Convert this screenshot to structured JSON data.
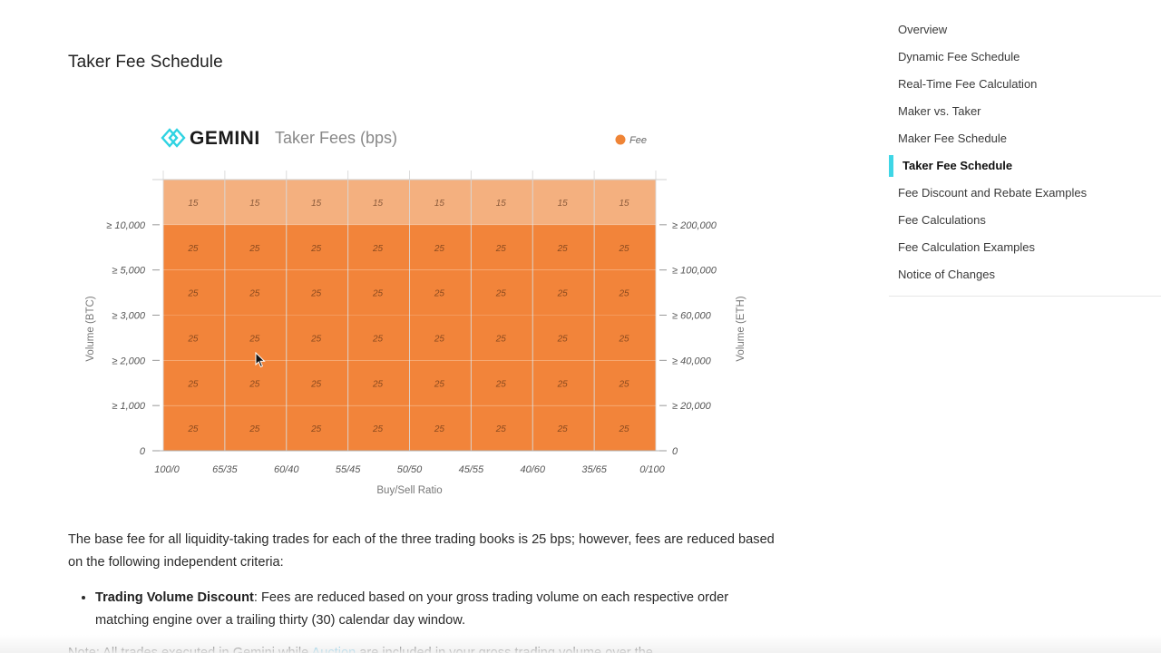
{
  "page_title": "Taker Fee Schedule",
  "toc": {
    "items": [
      {
        "label": "Overview",
        "active": false
      },
      {
        "label": "Dynamic Fee Schedule",
        "active": false
      },
      {
        "label": "Real-Time Fee Calculation",
        "active": false
      },
      {
        "label": "Maker vs. Taker",
        "active": false
      },
      {
        "label": "Maker Fee Schedule",
        "active": false
      },
      {
        "label": "Taker Fee Schedule",
        "active": true
      },
      {
        "label": "Fee Discount and Rebate Examples",
        "active": false
      },
      {
        "label": "Fee Calculations",
        "active": false
      },
      {
        "label": "Fee Calculation Examples",
        "active": false
      },
      {
        "label": "Notice of Changes",
        "active": false
      }
    ],
    "active_color": "#3ed6e6"
  },
  "chart_data": {
    "type": "heatmap",
    "brand": "GEMINI",
    "title": "Taker Fees (bps)",
    "legend": {
      "label": "Fee",
      "placement": "top-right"
    },
    "xlabel": "Buy/Sell Ratio",
    "ylabel_left": "Volume (BTC)",
    "ylabel_right": "Volume (ETH)",
    "x_ticks": [
      "100/0",
      "65/35",
      "60/40",
      "55/45",
      "50/50",
      "45/55",
      "40/60",
      "35/65",
      "0/100"
    ],
    "y_ticks_left": [
      "0",
      "≥ 1,000",
      "≥ 2,000",
      "≥ 3,000",
      "≥ 5,000",
      "≥ 10,000"
    ],
    "y_ticks_right": [
      "0",
      "≥ 20,000",
      "≥ 40,000",
      "≥ 60,000",
      "≥ 100,000",
      "≥ 200,000"
    ],
    "rows_top_to_bottom": [
      [
        15,
        15,
        15,
        15,
        15,
        15,
        15,
        15
      ],
      [
        25,
        25,
        25,
        25,
        25,
        25,
        25,
        25
      ],
      [
        25,
        25,
        25,
        25,
        25,
        25,
        25,
        25
      ],
      [
        25,
        25,
        25,
        25,
        25,
        25,
        25,
        25
      ],
      [
        25,
        25,
        25,
        25,
        25,
        25,
        25,
        25
      ],
      [
        25,
        25,
        25,
        25,
        25,
        25,
        25,
        25
      ]
    ],
    "colors": {
      "fee_15": "#f4b07f",
      "fee_25": "#f2843a",
      "legend_dot": "#ef8436",
      "logo": "#2ed3e2"
    }
  },
  "paragraph": "The base fee for all liquidity-taking trades for each of the three trading books is 25 bps; however, fees are reduced based on the following independent criteria:",
  "bullets": [
    {
      "title": "Trading Volume Discount",
      "text": ": Fees are reduced based on your gross trading volume on each respective order matching engine over a trailing thirty (30) calendar day window."
    }
  ],
  "cut_line": {
    "prefix": "Note: All trades executed in Gemini while ",
    "link": "Auction",
    "suffix": " are included in your gross trading volume over the"
  }
}
